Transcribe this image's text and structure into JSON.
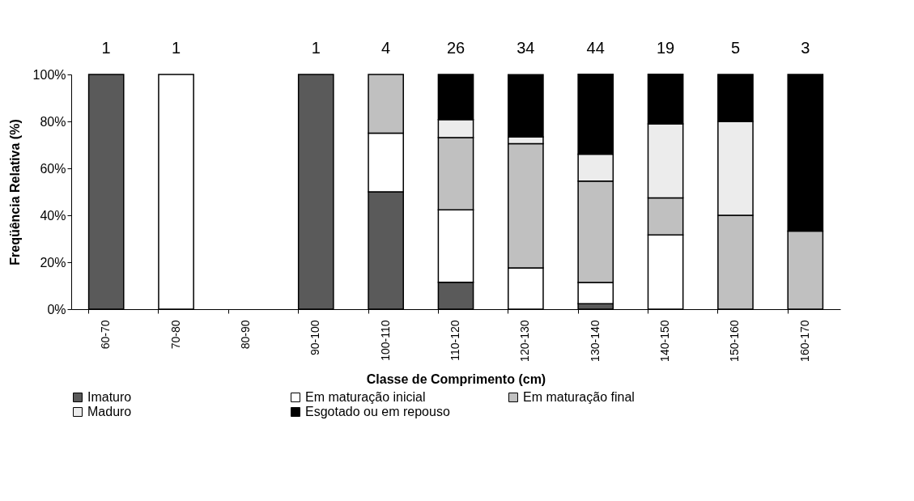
{
  "chart_data": {
    "type": "bar",
    "stacked": true,
    "xlabel": "Classe de Comprimento (cm)",
    "ylabel": "Freqüência Relativa (%)",
    "categories": [
      "60-70",
      "70-80",
      "80-90",
      "90-100",
      "100-110",
      "110-120",
      "120-130",
      "130-140",
      "140-150",
      "150-160",
      "160-170"
    ],
    "series": [
      {
        "name": "Imaturo",
        "color": "#5a5a5a",
        "values": [
          100,
          null,
          null,
          100,
          50,
          11.5,
          null,
          2.3,
          null,
          null,
          null
        ]
      },
      {
        "name": "Em maturação inicial",
        "color": "#ffffff",
        "values": [
          null,
          100,
          null,
          null,
          25,
          30.8,
          17.6,
          9.1,
          31.6,
          null,
          null
        ]
      },
      {
        "name": "Em maturação final",
        "color": "#c0c0c0",
        "values": [
          null,
          null,
          null,
          null,
          25,
          30.8,
          52.9,
          43.2,
          15.8,
          40,
          33.3
        ]
      },
      {
        "name": "Maduro",
        "color": "#ececec",
        "values": [
          null,
          null,
          null,
          null,
          null,
          7.7,
          2.9,
          11.4,
          31.6,
          40,
          null
        ]
      },
      {
        "name": "Esgotado ou em repouso",
        "color": "#000000",
        "values": [
          null,
          null,
          null,
          null,
          null,
          19.2,
          26.5,
          34.1,
          21.1,
          20,
          66.7
        ]
      }
    ],
    "annotations": [
      {
        "text": "1",
        "x": "60-70",
        "y": 100
      },
      {
        "text": "1",
        "x": "70-80",
        "y": 100
      },
      {
        "text": "1",
        "x": "90-100",
        "y": 100
      },
      {
        "text": "4",
        "x": "100-110",
        "y": 100
      },
      {
        "text": "26",
        "x": "110-120",
        "y": 100
      },
      {
        "text": "34",
        "x": "120-130",
        "y": 100
      },
      {
        "text": "44",
        "x": "130-140",
        "y": 100
      },
      {
        "text": "19",
        "x": "140-150",
        "y": 100
      },
      {
        "text": "5",
        "x": "150-160",
        "y": 100
      },
      {
        "text": "3",
        "x": "160-170",
        "y": 100
      }
    ],
    "ylim": [
      0,
      100
    ],
    "yticks": [
      {
        "value": 0,
        "label": "0%"
      },
      {
        "value": 20,
        "label": "20%"
      },
      {
        "value": 40,
        "label": "40%"
      },
      {
        "value": 60,
        "label": "60%"
      },
      {
        "value": 80,
        "label": "80%"
      },
      {
        "value": 100,
        "label": "100%"
      }
    ],
    "grid": false,
    "legend": "bottom"
  }
}
